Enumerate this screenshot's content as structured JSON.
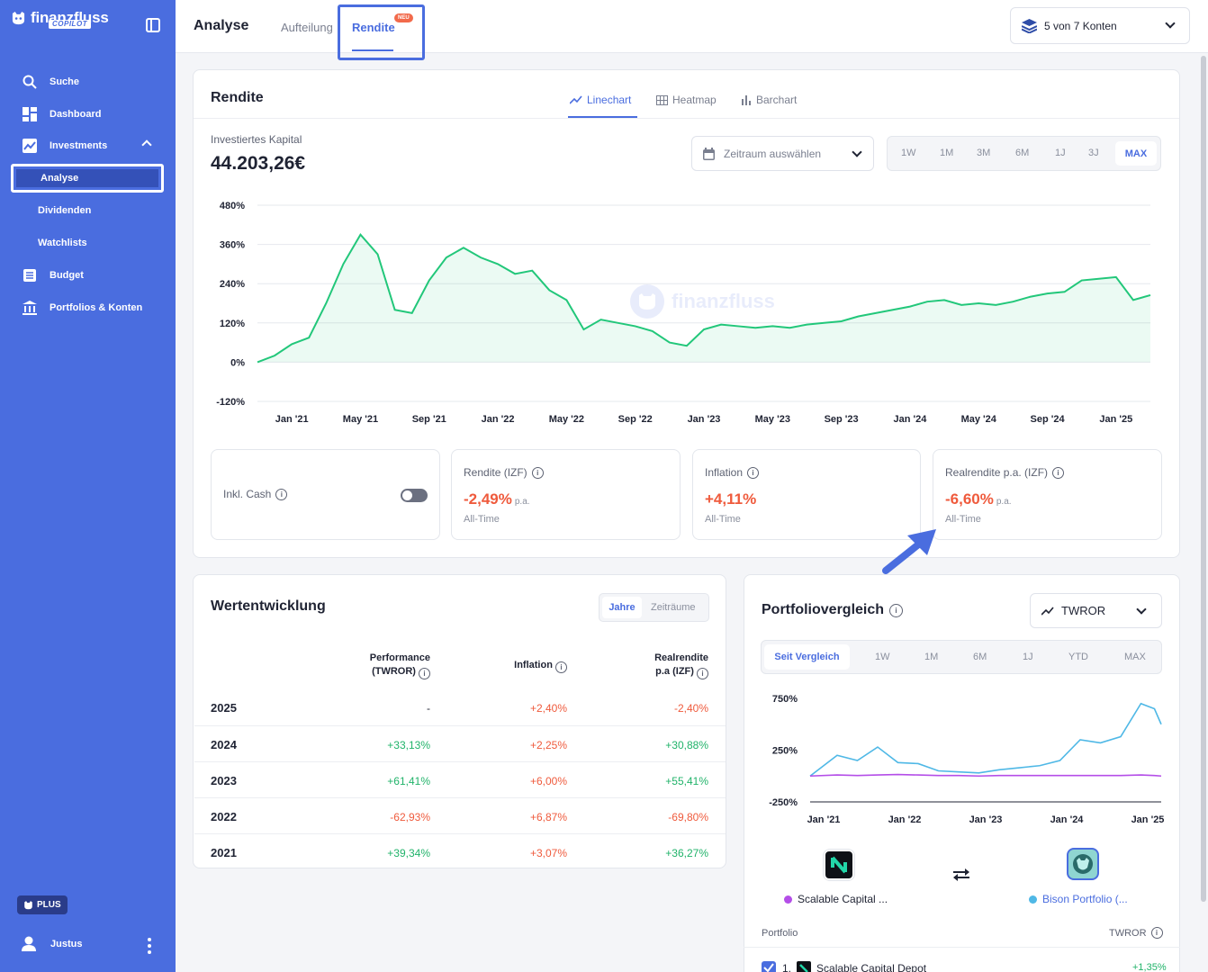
{
  "brand": {
    "name": "finanzfluss",
    "sub": "COPILOT"
  },
  "sidebar": {
    "items": [
      {
        "label": "Suche",
        "icon": "search-icon"
      },
      {
        "label": "Dashboard",
        "icon": "dashboard-icon"
      },
      {
        "label": "Investments",
        "icon": "chart-trend-icon"
      },
      {
        "label": "Budget",
        "icon": "budget-icon"
      },
      {
        "label": "Portfolios & Konten",
        "icon": "bank-icon"
      }
    ],
    "sub_items": [
      "Analyse",
      "Dividenden",
      "Watchlists"
    ],
    "plan_badge": "PLUS",
    "user": "Justus"
  },
  "topbar": {
    "title": "Analyse",
    "tabs": [
      "Aufteilung",
      "Rendite"
    ],
    "new_badge": "NEU",
    "account_select": "5 von 7 Konten"
  },
  "rendite": {
    "title": "Rendite",
    "chart_tabs": [
      "Linechart",
      "Heatmap",
      "Barchart"
    ],
    "capital_label": "Investiertes Kapital",
    "capital_value": "44.203,26€",
    "date_placeholder": "Zeitraum auswählen",
    "ranges": [
      "1W",
      "1M",
      "3M",
      "6M",
      "1J",
      "3J",
      "MAX"
    ],
    "watermark": "finanzfluss",
    "stats": {
      "cash_label": "Inkl. Cash",
      "cash_enabled": false,
      "izf_label": "Rendite (IZF)",
      "izf_value": "-2,49%",
      "inflation_label": "Inflation",
      "inflation_value": "+4,11%",
      "real_label": "Realrendite p.a. (IZF)",
      "real_value": "-6,60%",
      "pa": "p.a.",
      "all_time": "All-Time"
    }
  },
  "chart_data": [
    {
      "type": "area",
      "y_ticks": [
        "480%",
        "360%",
        "240%",
        "120%",
        "0%",
        "-120%"
      ],
      "x_ticks": [
        "Jan '21",
        "May '21",
        "Sep '21",
        "Jan '22",
        "May '22",
        "Sep '22",
        "Jan '23",
        "May '23",
        "Sep '23",
        "Jan '24",
        "May '24",
        "Sep '24",
        "Jan '25"
      ],
      "ylim": [
        -120,
        480
      ],
      "x": [
        "2020-11",
        "2020-12",
        "2021-01",
        "2021-02",
        "2021-03",
        "2021-04",
        "2021-05",
        "2021-06",
        "2021-07",
        "2021-08",
        "2021-09",
        "2021-10",
        "2021-11",
        "2021-12",
        "2022-01",
        "2022-02",
        "2022-03",
        "2022-04",
        "2022-05",
        "2022-06",
        "2022-07",
        "2022-08",
        "2022-09",
        "2022-10",
        "2022-11",
        "2022-12",
        "2023-01",
        "2023-02",
        "2023-03",
        "2023-04",
        "2023-05",
        "2023-06",
        "2023-07",
        "2023-08",
        "2023-09",
        "2023-10",
        "2023-11",
        "2023-12",
        "2024-01",
        "2024-02",
        "2024-03",
        "2024-04",
        "2024-05",
        "2024-06",
        "2024-07",
        "2024-08",
        "2024-09",
        "2024-10",
        "2024-11",
        "2024-12",
        "2025-01",
        "2025-02",
        "2025-03"
      ],
      "values": [
        0,
        20,
        55,
        75,
        180,
        300,
        390,
        330,
        160,
        150,
        250,
        320,
        350,
        320,
        300,
        270,
        280,
        220,
        190,
        100,
        130,
        120,
        110,
        95,
        60,
        50,
        100,
        115,
        110,
        105,
        110,
        105,
        115,
        120,
        125,
        140,
        150,
        160,
        170,
        185,
        190,
        175,
        180,
        175,
        185,
        200,
        210,
        215,
        250,
        255,
        260,
        190,
        205
      ],
      "grid": true
    },
    {
      "type": "line",
      "y_ticks": [
        "750%",
        "250%",
        "-250%"
      ],
      "x_ticks": [
        "Jan '21",
        "Jan '22",
        "Jan '23",
        "Jan '24",
        "Jan '25"
      ],
      "ylim": [
        -250,
        750
      ],
      "x": [
        "2020-11",
        "2021-03",
        "2021-06",
        "2021-09",
        "2021-12",
        "2022-03",
        "2022-06",
        "2022-09",
        "2022-12",
        "2023-03",
        "2023-06",
        "2023-09",
        "2023-12",
        "2024-03",
        "2024-06",
        "2024-09",
        "2024-12",
        "2025-02",
        "2025-03"
      ],
      "series": [
        {
          "name": "Bison Portfolio (...",
          "color": "#4fb8e6",
          "values": [
            0,
            200,
            150,
            280,
            130,
            120,
            50,
            40,
            30,
            60,
            80,
            100,
            150,
            350,
            320,
            380,
            700,
            650,
            500
          ]
        },
        {
          "name": "Scalable Capital ...",
          "color": "#b44ee8",
          "values": [
            0,
            10,
            5,
            10,
            15,
            10,
            5,
            5,
            0,
            5,
            5,
            5,
            5,
            5,
            5,
            5,
            10,
            5,
            0
          ]
        }
      ],
      "grid": false
    }
  ],
  "wertentwicklung": {
    "title": "Wertentwicklung",
    "seg": [
      "Jahre",
      "Zeiträume"
    ],
    "headers": {
      "perf1": "Performance",
      "perf2": "(TWROR)",
      "infl": "Inflation",
      "real1": "Realrendite",
      "real2": "p.a (IZF)"
    },
    "rows": [
      {
        "year": "2025",
        "perf": "-",
        "infl": "+2,40%",
        "real": "-2,40%"
      },
      {
        "year": "2024",
        "perf": "+33,13%",
        "infl": "+2,25%",
        "real": "+30,88%"
      },
      {
        "year": "2023",
        "perf": "+61,41%",
        "infl": "+6,00%",
        "real": "+55,41%"
      },
      {
        "year": "2022",
        "perf": "-62,93%",
        "infl": "+6,87%",
        "real": "-69,80%"
      },
      {
        "year": "2021",
        "perf": "+39,34%",
        "infl": "+3,07%",
        "real": "+36,27%"
      }
    ]
  },
  "portfoliovergleich": {
    "title": "Portfoliovergleich",
    "metric": "TWROR",
    "ranges": [
      "Seit Vergleich",
      "1W",
      "1M",
      "6M",
      "1J",
      "YTD",
      "MAX"
    ],
    "left_name": "Scalable Capital ...",
    "right_name": "Bison Portfolio (...",
    "table_header": "Portfolio",
    "table_metric": "TWROR",
    "row1_rank": "1.",
    "row1_name": "Scalable Capital Depot",
    "row1_value": "+1,35%"
  }
}
